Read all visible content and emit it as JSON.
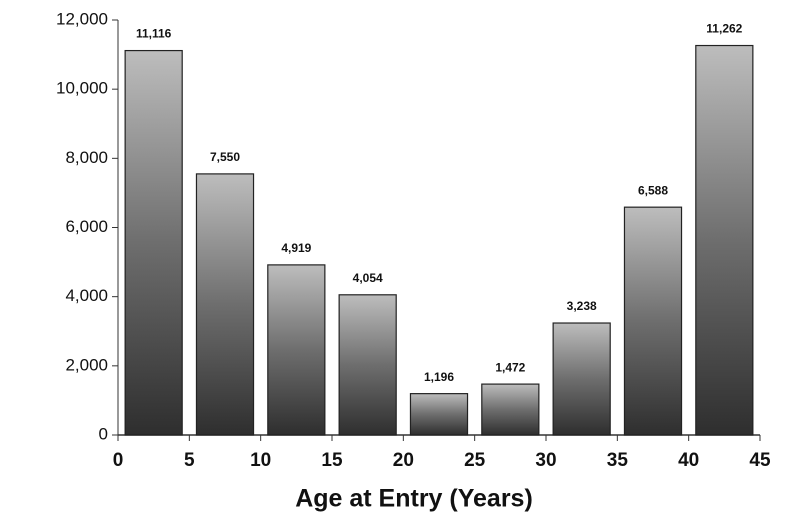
{
  "chart_data": {
    "type": "histogram",
    "x_label": "Age at Entry (Years)",
    "bins": [
      0,
      5,
      10,
      15,
      20,
      25,
      30,
      35,
      40,
      45
    ],
    "values": [
      11116,
      7550,
      4919,
      4054,
      1196,
      1472,
      3238,
      6588,
      11262
    ],
    "value_labels": [
      "11,116",
      "7,550",
      "4,919",
      "4,054",
      "1,196",
      "1,472",
      "3,238",
      "6,588",
      "11,262"
    ],
    "xlim": [
      0,
      45
    ],
    "xticks": [
      0,
      5,
      10,
      15,
      20,
      25,
      30,
      35,
      40,
      45
    ],
    "ylim": [
      0,
      12000
    ],
    "yticks": [
      0,
      {
        "value": 2000,
        "label": "2,000"
      },
      {
        "value": 4000,
        "label": "4,000"
      },
      {
        "value": 6000,
        "label": "6,000"
      },
      {
        "value": 8000,
        "label": "8,000"
      },
      {
        "value": 10000,
        "label": "10,000"
      },
      {
        "value": 12000,
        "label": "12,000"
      }
    ]
  }
}
